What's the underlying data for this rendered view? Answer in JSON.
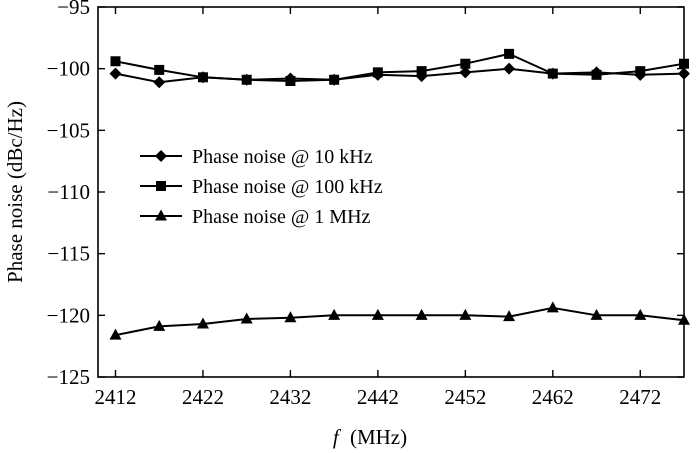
{
  "chart_data": {
    "type": "line",
    "xlabel_italic": "f",
    "xlabel_unit": "(MHz)",
    "ylabel": "Phase noise (dBc/Hz)",
    "xlim": [
      2410,
      2477
    ],
    "ylim": [
      -125,
      -95
    ],
    "xticks": [
      2412,
      2422,
      2432,
      2442,
      2452,
      2462,
      2472
    ],
    "yticks": [
      -95,
      -100,
      -105,
      -110,
      -115,
      -120,
      -125
    ],
    "grid": false,
    "legend_position": "middle-left",
    "x": [
      2412,
      2417,
      2422,
      2427,
      2432,
      2437,
      2442,
      2447,
      2452,
      2457,
      2462,
      2467,
      2472,
      2477
    ],
    "series": [
      {
        "name": "Phase noise @ 10 kHz",
        "marker": "diamond",
        "values": [
          -100.4,
          -101.1,
          -100.7,
          -100.9,
          -100.8,
          -100.9,
          -100.5,
          -100.6,
          -100.3,
          -100.0,
          -100.4,
          -100.3,
          -100.5,
          -100.4
        ]
      },
      {
        "name": "Phase noise @ 100 kHz",
        "marker": "square",
        "values": [
          -99.4,
          -100.1,
          -100.7,
          -100.9,
          -101.0,
          -100.9,
          -100.3,
          -100.2,
          -99.6,
          -98.8,
          -100.4,
          -100.5,
          -100.2,
          -99.6
        ]
      },
      {
        "name": "Phase noise @ 1 MHz",
        "marker": "triangle",
        "values": [
          -121.6,
          -120.9,
          -120.7,
          -120.3,
          -120.2,
          -120.0,
          -120.0,
          -120.0,
          -120.0,
          -120.1,
          -119.4,
          -120.0,
          -120.0,
          -120.4
        ]
      }
    ],
    "colors": {
      "line": "#000000",
      "background": "#ffffff"
    }
  }
}
